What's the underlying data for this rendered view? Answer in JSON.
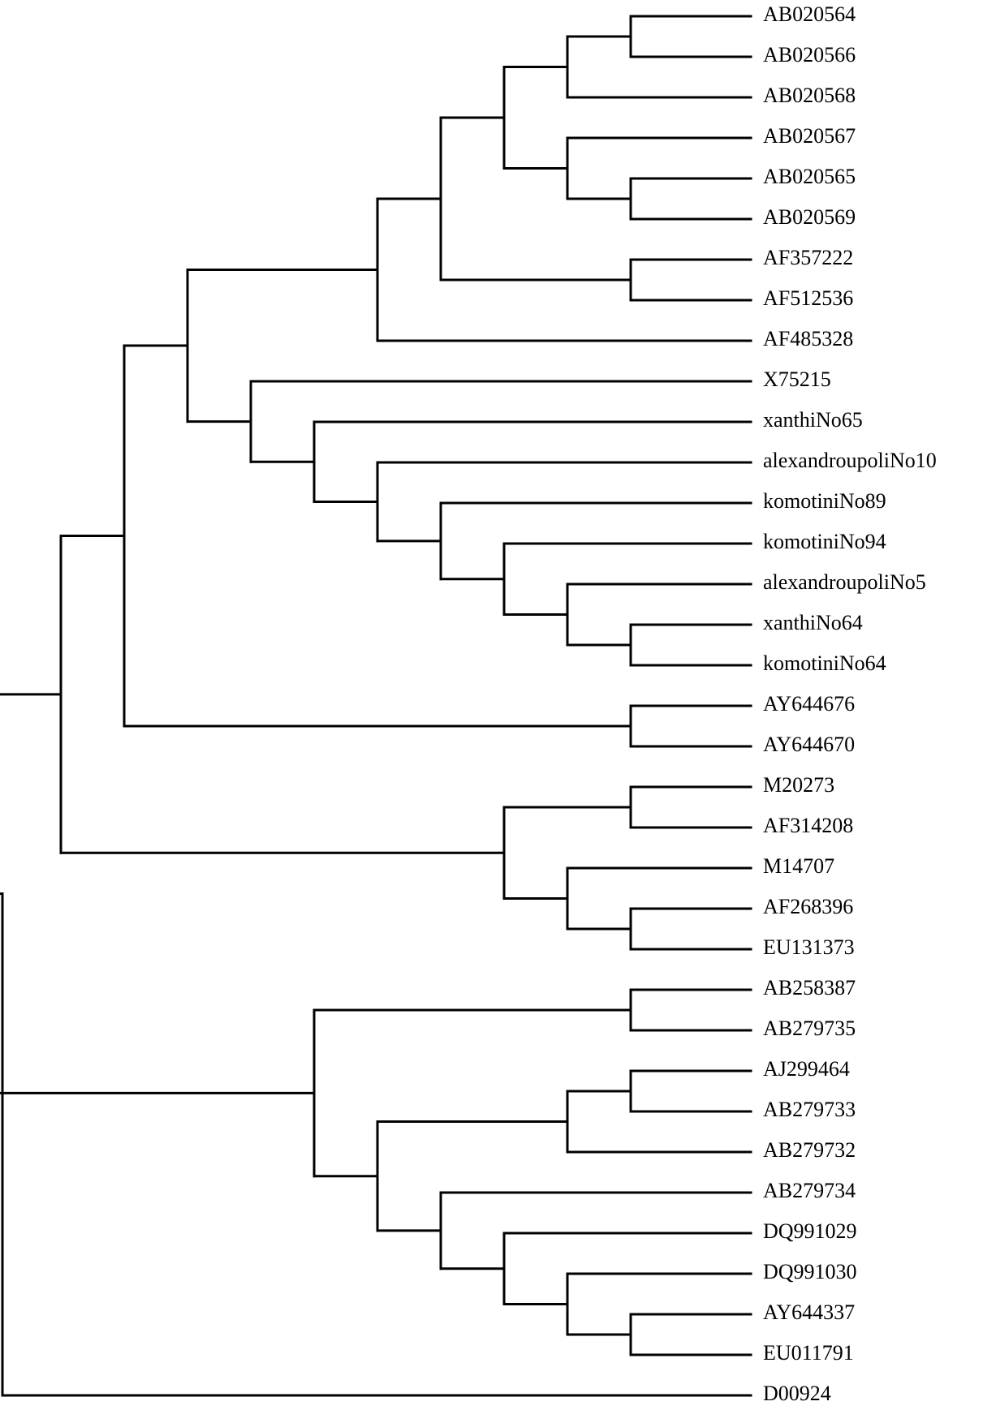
{
  "tree": {
    "line_color": "#000000",
    "background": "#ffffff",
    "root": {
      "children": [
        {
          "children": [
            {
              "children": [
                {
                  "children": [
                    {
                      "children": [
                        {
                          "children": [
                            {
                              "children": [
                                {
                                  "children": [
                                    {
                                      "children": [
                                        {
                                          "label": "AB020564"
                                        },
                                        {
                                          "label": "AB020566"
                                        }
                                      ]
                                    },
                                    {
                                      "label": "AB020568"
                                    }
                                  ]
                                },
                                {
                                  "children": [
                                    {
                                      "label": "AB020567"
                                    },
                                    {
                                      "children": [
                                        {
                                          "label": "AB020565"
                                        },
                                        {
                                          "label": "AB020569"
                                        }
                                      ]
                                    }
                                  ]
                                }
                              ]
                            },
                            {
                              "children": [
                                {
                                  "label": "AF357222"
                                },
                                {
                                  "label": "AF512536"
                                }
                              ]
                            }
                          ]
                        },
                        {
                          "label": "AF485328"
                        }
                      ]
                    },
                    {
                      "children": [
                        {
                          "label": "X75215"
                        },
                        {
                          "children": [
                            {
                              "label": "xanthiNo65"
                            },
                            {
                              "children": [
                                {
                                  "label": "alexandroupoliNo10"
                                },
                                {
                                  "children": [
                                    {
                                      "label": "komotiniNo89"
                                    },
                                    {
                                      "children": [
                                        {
                                          "label": "komotiniNo94"
                                        },
                                        {
                                          "children": [
                                            {
                                              "label": "alexandroupoliNo5"
                                            },
                                            {
                                              "children": [
                                                {
                                                  "label": "xanthiNo64"
                                                },
                                                {
                                                  "label": "komotiniNo64"
                                                }
                                              ]
                                            }
                                          ]
                                        }
                                      ]
                                    }
                                  ]
                                }
                              ]
                            }
                          ]
                        }
                      ]
                    }
                  ]
                },
                {
                  "children": [
                    {
                      "label": "AY644676"
                    },
                    {
                      "label": "AY644670"
                    }
                  ]
                }
              ]
            },
            {
              "children": [
                {
                  "children": [
                    {
                      "label": "M20273"
                    },
                    {
                      "label": "AF314208"
                    }
                  ]
                },
                {
                  "children": [
                    {
                      "label": "M14707"
                    },
                    {
                      "children": [
                        {
                          "label": "AF268396"
                        },
                        {
                          "label": "EU131373"
                        }
                      ]
                    }
                  ]
                }
              ]
            }
          ]
        },
        {
          "children": [
            {
              "children": [
                {
                  "label": "AB258387"
                },
                {
                  "label": "AB279735"
                }
              ]
            },
            {
              "children": [
                {
                  "children": [
                    {
                      "children": [
                        {
                          "label": "AJ299464"
                        },
                        {
                          "label": "AB279733"
                        }
                      ]
                    },
                    {
                      "label": "AB279732"
                    }
                  ]
                },
                {
                  "children": [
                    {
                      "label": "AB279734"
                    },
                    {
                      "children": [
                        {
                          "label": "DQ991029"
                        },
                        {
                          "children": [
                            {
                              "label": "DQ991030"
                            },
                            {
                              "children": [
                                {
                                  "label": "AY644337"
                                },
                                {
                                  "label": "EU011791"
                                }
                              ]
                            }
                          ]
                        }
                      ]
                    }
                  ]
                }
              ]
            }
          ]
        }
      ]
    },
    "outgroup": {
      "label": "D00924"
    }
  }
}
